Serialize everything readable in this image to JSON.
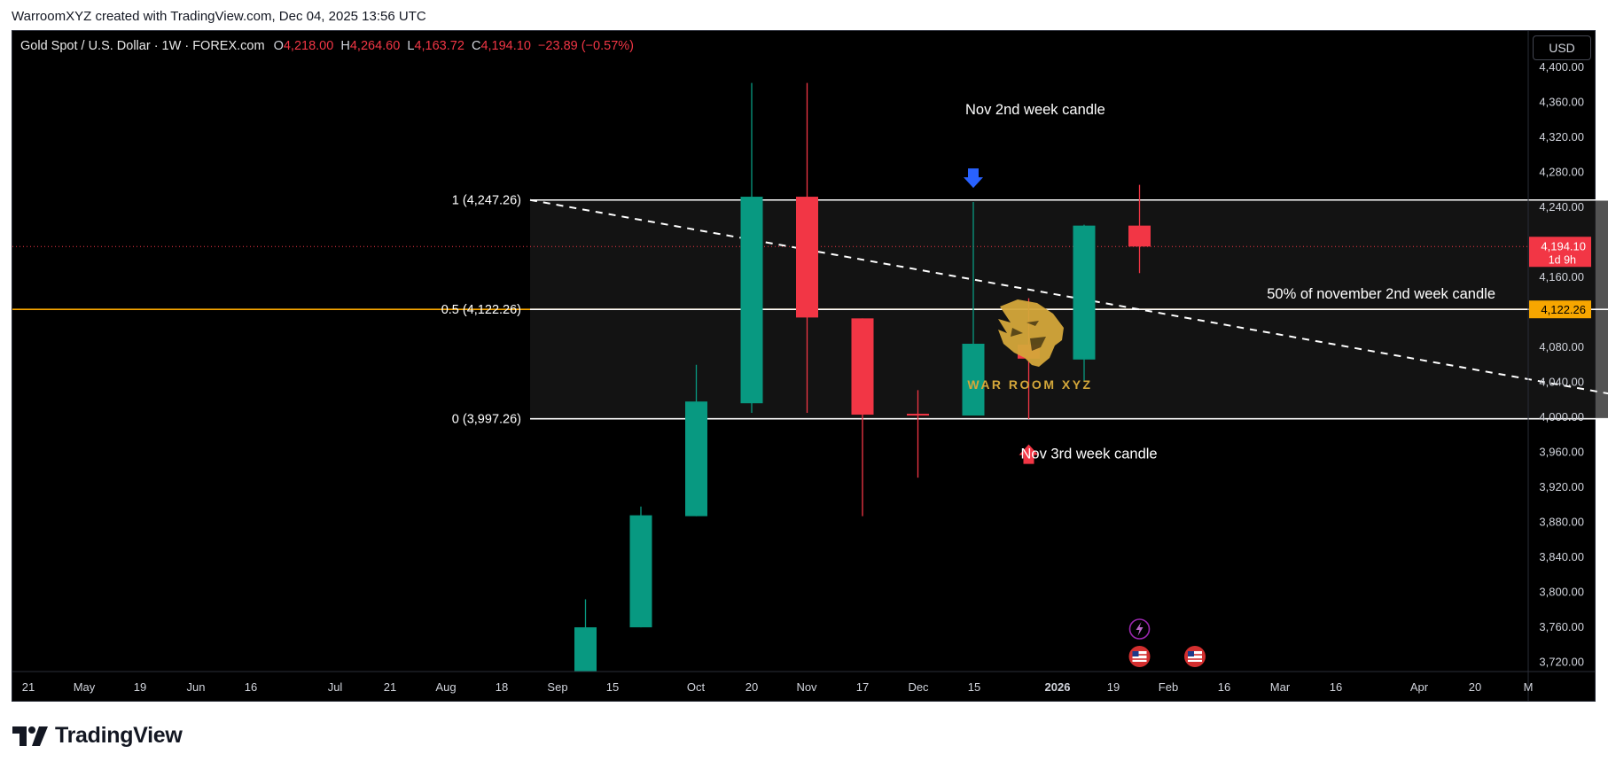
{
  "caption": "WarroomXYZ created with TradingView.com, Dec 04, 2025 13:56 UTC",
  "header": {
    "symbol": "Gold Spot / U.S. Dollar · 1W · FOREX.com",
    "o_label": "O",
    "o_value": "4,218.00",
    "h_label": "H",
    "h_value": "4,264.60",
    "l_label": "L",
    "l_value": "4,163.72",
    "c_label": "C",
    "c_value": "4,194.10",
    "change": "−23.89 (−0.57%)"
  },
  "currency_button": "USD",
  "branding": {
    "footer_logo_text": "TradingView",
    "watermark_text": "WAR ROOM XYZ",
    "watermark_icon": "lion-head-icon"
  },
  "colors": {
    "up": "#089981",
    "down": "#f23645",
    "background": "#000000",
    "orange": "#f7a600",
    "arrow_blue": "#2962ff",
    "watermark_gold": "#d4a73a"
  },
  "chart_data": {
    "type": "candlestick",
    "timeframe": "1W",
    "y_axis": {
      "range": [
        3700,
        4400
      ],
      "tick_labels": [
        "4,400.00",
        "4,360.00",
        "4,320.00",
        "4,280.00",
        "4,240.00",
        "4,200.00",
        "4,160.00",
        "4,120.00",
        "4,080.00",
        "4,040.00",
        "4,000.00",
        "3,960.00",
        "3,920.00",
        "3,880.00",
        "3,840.00",
        "3,800.00",
        "3,760.00",
        "3,720.00"
      ]
    },
    "x_axis": {
      "tick_labels": [
        "21",
        "May",
        "19",
        "Jun",
        "16",
        "Jul",
        "21",
        "Aug",
        "18",
        "Sep",
        "15",
        "Oct",
        "20",
        "Nov",
        "17",
        "Dec",
        "15",
        "2026",
        "19",
        "Feb",
        "16",
        "Mar",
        "16",
        "Apr",
        "20",
        "M"
      ],
      "bold_labels": [
        "2026"
      ]
    },
    "candles": [
      {
        "date": "2025-09-22",
        "open": 3685,
        "high": 3791,
        "low": 3685,
        "close": 3759
      },
      {
        "date": "2025-09-29",
        "open": 3759,
        "high": 3897,
        "low": 3759,
        "close": 3887
      },
      {
        "date": "2025-10-06",
        "open": 3886,
        "high": 4059,
        "low": 3886,
        "close": 4017
      },
      {
        "date": "2025-10-13",
        "open": 4015,
        "high": 4381,
        "low": 4004,
        "close": 4251
      },
      {
        "date": "2025-10-20",
        "open": 4251,
        "high": 4381,
        "low": 4004,
        "close": 4113
      },
      {
        "date": "2025-10-27",
        "open": 4112,
        "high": 4112,
        "low": 3886,
        "close": 4002
      },
      {
        "date": "2025-11-03",
        "open": 4003,
        "high": 4030,
        "low": 3930,
        "close": 4001
      },
      {
        "date": "2025-11-10",
        "open": 4001,
        "high": 4245,
        "low": 4001,
        "close": 4083
      },
      {
        "date": "2025-11-17",
        "open": 4082,
        "high": 4135,
        "low": 3997,
        "close": 4066
      },
      {
        "date": "2025-11-24",
        "open": 4065,
        "high": 4219,
        "low": 4040,
        "close": 4218
      },
      {
        "date": "2025-12-01",
        "open": 4218.0,
        "high": 4264.6,
        "low": 4163.72,
        "close": 4194.1
      }
    ],
    "fib_levels": [
      {
        "label": "1 (4,247.26)",
        "value": 4247.26
      },
      {
        "label": "0.5 (4,122.26)",
        "value": 4122.26
      },
      {
        "label": "0 (3,997.26)",
        "value": 3997.26
      }
    ],
    "fib_range_dates": [
      "2025-09-15",
      "2026-02-16"
    ],
    "orange_line": {
      "value": 4122.26,
      "price_label": "4,122.26",
      "annotation": "50% of november 2nd week candle"
    },
    "current_price": {
      "value": 4194.1,
      "label": "4,194.10",
      "countdown": "1d 9h"
    },
    "annotations": [
      {
        "text": "Nov 2nd week candle",
        "date": "2025-11-10",
        "value": 4345
      },
      {
        "text": "Nov 3rd week candle",
        "date": "2025-11-17",
        "value": 3952
      }
    ],
    "arrows": [
      {
        "direction": "down",
        "color": "blue",
        "date": "2025-11-10",
        "value": 4261
      },
      {
        "direction": "up",
        "color": "red",
        "date": "2025-11-17",
        "value": 3968
      }
    ],
    "dashed_trendline": [
      {
        "date": "2025-09-15",
        "value": 4247.26
      },
      {
        "date": "2026-02-16",
        "value": 3997.26
      }
    ],
    "event_markers": [
      {
        "icon": "lightning-icon",
        "date": "2025-12-01"
      },
      {
        "icon": "us-flag-icon",
        "date": "2025-12-01"
      },
      {
        "icon": "us-flag-icon",
        "date": "2025-12-08"
      }
    ]
  }
}
